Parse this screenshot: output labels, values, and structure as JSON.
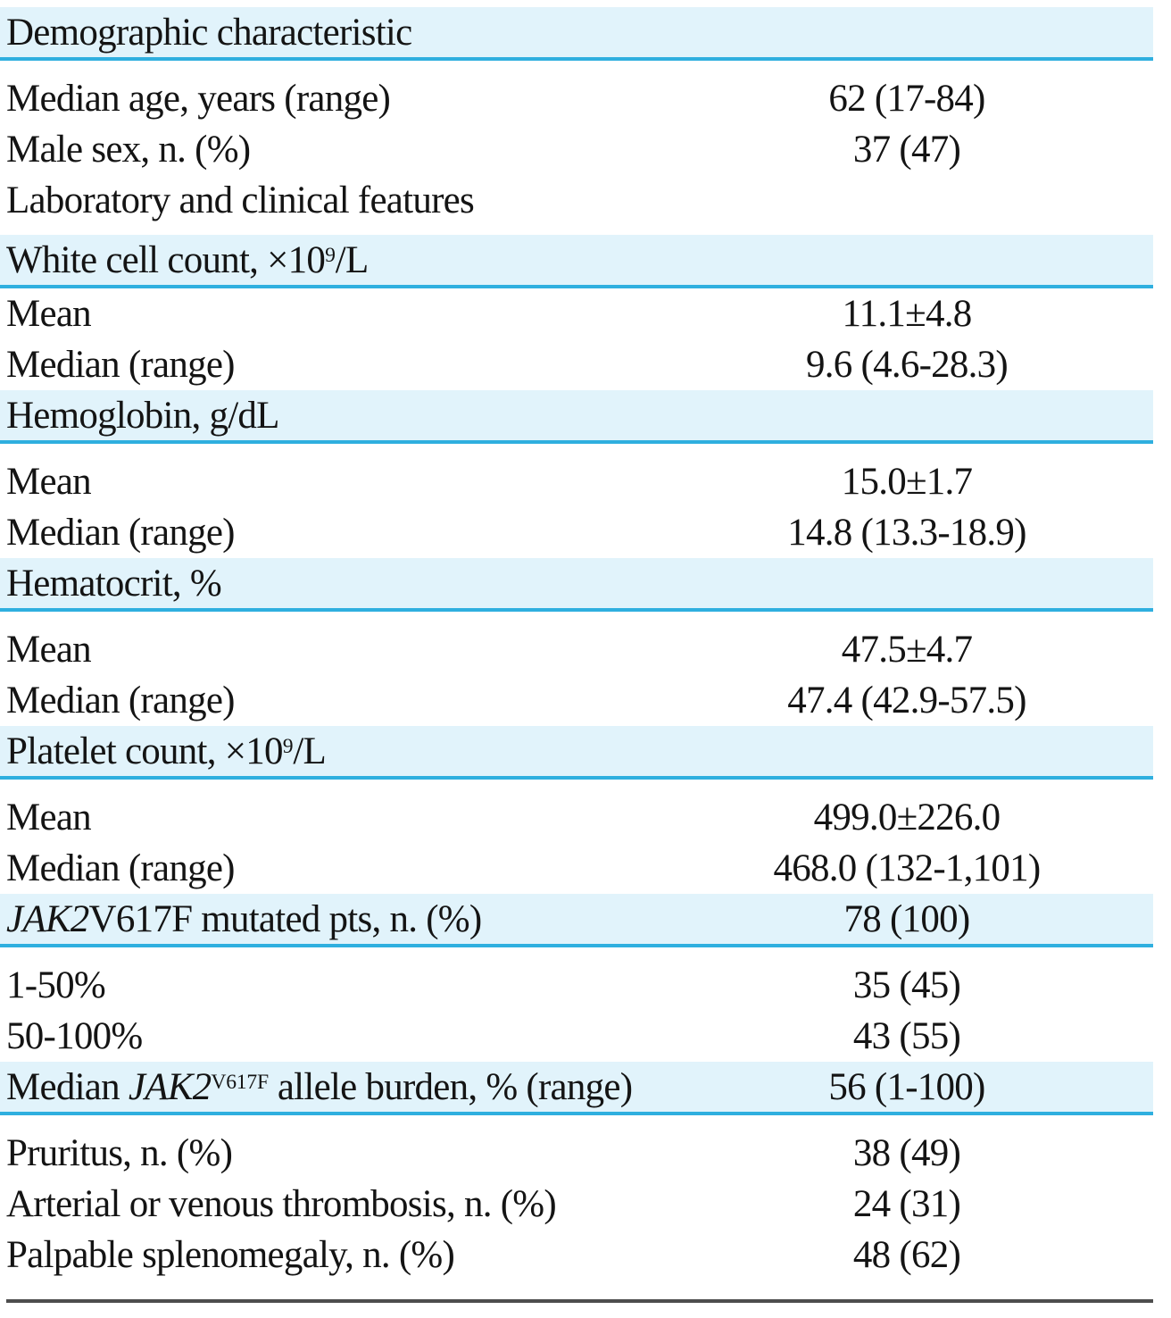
{
  "colors": {
    "band-bg": "#e1f3fb",
    "rule-blue": "#2fafdf",
    "rule-dark": "#4d4d4d"
  },
  "rows": [
    {
      "kind": "section",
      "label": "Demographic characteristic",
      "value": ""
    },
    {
      "kind": "data",
      "label": "Median age, years (range)",
      "value": "62 (17-84)"
    },
    {
      "kind": "data",
      "label": "Male sex, n. (%)",
      "value": "37 (47)"
    },
    {
      "kind": "data",
      "label": "Laboratory and clinical features",
      "value": ""
    },
    {
      "kind": "section",
      "label_pre": "White cell count, ×10",
      "label_sup": "9",
      "label_post": "/L",
      "value": ""
    },
    {
      "kind": "data",
      "label": "Mean",
      "value": "11.1±4.8"
    },
    {
      "kind": "data",
      "label": "Median (range)",
      "value": "9.6 (4.6-28.3)"
    },
    {
      "kind": "section",
      "label": "Hemoglobin, g/dL",
      "value": ""
    },
    {
      "kind": "data",
      "label": "Mean",
      "value": "15.0±1.7"
    },
    {
      "kind": "data",
      "label": "Median (range)",
      "value": "14.8 (13.3-18.9)"
    },
    {
      "kind": "section",
      "label": "Hematocrit, %",
      "value": ""
    },
    {
      "kind": "data",
      "label": "Mean",
      "value": "47.5±4.7"
    },
    {
      "kind": "data",
      "label": "Median (range)",
      "value": "47.4 (42.9-57.5)"
    },
    {
      "kind": "section",
      "label_pre": "Platelet count, ×10",
      "label_sup": "9",
      "label_post": "/L",
      "value": ""
    },
    {
      "kind": "data",
      "label": "Mean",
      "value": "499.0±226.0"
    },
    {
      "kind": "data",
      "label": "Median (range)",
      "value": "468.0 (132-1,101)"
    },
    {
      "kind": "section",
      "label_italic": "JAK2",
      "label_post": "V617F mutated pts, n. (%)",
      "value": "78 (100)"
    },
    {
      "kind": "data",
      "label": "1-50%",
      "value": "35 (45)"
    },
    {
      "kind": "data",
      "label": "50-100%",
      "value": "43 (55)"
    },
    {
      "kind": "section",
      "label_pre": "Median ",
      "label_italic": "JAK2",
      "label_sup": "V617F",
      "label_post": " allele burden, % (range)",
      "value": "56 (1-100)"
    },
    {
      "kind": "data",
      "label": "Pruritus, n. (%)",
      "value": "38 (49)"
    },
    {
      "kind": "data",
      "label": "Arterial or venous thrombosis, n. (%)",
      "value": "24 (31)"
    },
    {
      "kind": "data",
      "label": "Palpable splenomegaly, n. (%)",
      "value": "48 (62)"
    }
  ]
}
